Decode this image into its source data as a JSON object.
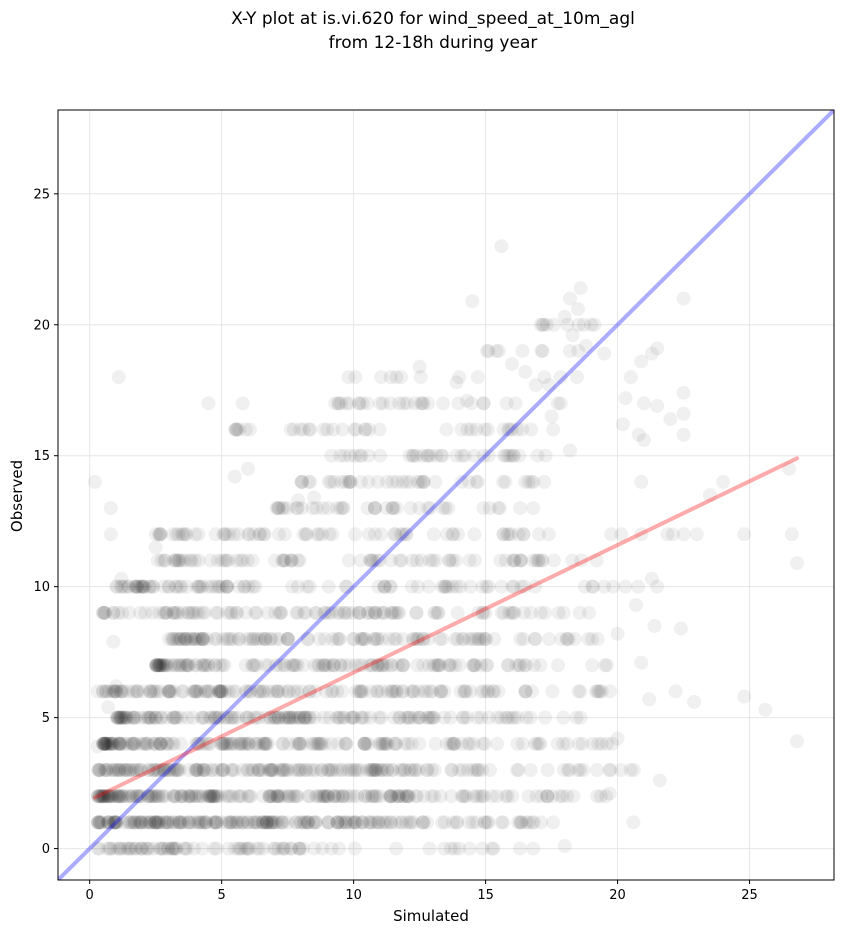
{
  "chart_data": {
    "type": "scatter",
    "title_lines": [
      "X-Y plot at is.vi.620 for wind_speed_at_10m_agl",
      "from 12-18h during year"
    ],
    "xlabel": "Simulated",
    "ylabel": "Observed",
    "xlim": [
      -1.2,
      28.2
    ],
    "ylim": [
      -1.2,
      28.2
    ],
    "xticks": [
      0,
      5,
      10,
      15,
      20,
      25
    ],
    "yticks": [
      0,
      5,
      10,
      15,
      20,
      25
    ],
    "grid": true,
    "colors": {
      "points": "#000000",
      "one_to_one_line": "#0000ff",
      "regression_line": "#ff0000",
      "grid": "#e6e6e6"
    },
    "point_alpha": 0.06,
    "lines": [
      {
        "role": "one-to-one",
        "x": [
          -1.2,
          28.2
        ],
        "y": [
          -1.2,
          28.2
        ]
      },
      {
        "role": "regression",
        "x": [
          0.2,
          26.8
        ],
        "y": [
          1.95,
          14.9
        ]
      }
    ],
    "series": [
      {
        "role": "observations",
        "clusters": [
          {
            "y": 0,
            "x_range": [
              0.3,
              9.5
            ],
            "count": 70
          },
          {
            "y": 0,
            "x_range": [
              10.0,
              18.5
            ],
            "count": 10
          },
          {
            "y": 1,
            "x_range": [
              0.3,
              11.0
            ],
            "count": 170
          },
          {
            "y": 1,
            "x_range": [
              11.0,
              18.5
            ],
            "count": 40
          },
          {
            "y": 2,
            "x_range": [
              0.3,
              12.0
            ],
            "count": 170
          },
          {
            "y": 2,
            "x_range": [
              12.0,
              20.0
            ],
            "count": 40
          },
          {
            "y": 3,
            "x_range": [
              0.3,
              12.5
            ],
            "count": 150
          },
          {
            "y": 3,
            "x_range": [
              12.5,
              21.0
            ],
            "count": 30
          },
          {
            "y": 4,
            "x_range": [
              0.5,
              13.0
            ],
            "count": 140
          },
          {
            "y": 4,
            "x_range": [
              13.0,
              20.0
            ],
            "count": 30
          },
          {
            "y": 5,
            "x_range": [
              1.0,
              13.5
            ],
            "count": 130
          },
          {
            "y": 5,
            "x_range": [
              13.5,
              19.0
            ],
            "count": 20
          },
          {
            "y": 6,
            "x_range": [
              0.5,
              14.0
            ],
            "count": 120
          },
          {
            "y": 6,
            "x_range": [
              14.0,
              20.0
            ],
            "count": 25
          },
          {
            "y": 7,
            "x_range": [
              2.5,
              14.5
            ],
            "count": 110
          },
          {
            "y": 7,
            "x_range": [
              14.5,
              20.0
            ],
            "count": 20
          },
          {
            "y": 8,
            "x_range": [
              3.0,
              15.0
            ],
            "count": 100
          },
          {
            "y": 8,
            "x_range": [
              15.0,
              20.0
            ],
            "count": 15
          },
          {
            "y": 9,
            "x_range": [
              0.5,
              15.0
            ],
            "count": 90
          },
          {
            "y": 9,
            "x_range": [
              15.0,
              19.0
            ],
            "count": 15
          },
          {
            "y": 10,
            "x_range": [
              1.0,
              16.0
            ],
            "count": 80
          },
          {
            "y": 10,
            "x_range": [
              16.0,
              21.0
            ],
            "count": 12
          },
          {
            "y": 11,
            "x_range": [
              2.5,
              17.0
            ],
            "count": 70
          },
          {
            "y": 11,
            "x_range": [
              17.0,
              19.5
            ],
            "count": 8
          },
          {
            "y": 12,
            "x_range": [
              2.5,
              17.0
            ],
            "count": 60
          },
          {
            "y": 12,
            "x_range": [
              17.0,
              23.0
            ],
            "count": 8
          },
          {
            "y": 13,
            "x_range": [
              7.0,
              17.0
            ],
            "count": 40
          },
          {
            "y": 14,
            "x_range": [
              8.0,
              17.5
            ],
            "count": 40
          },
          {
            "y": 15,
            "x_range": [
              9.0,
              18.0
            ],
            "count": 35
          },
          {
            "y": 16,
            "x_range": [
              5.5,
              18.0
            ],
            "count": 35
          },
          {
            "y": 17,
            "x_range": [
              9.0,
              18.0
            ],
            "count": 30
          },
          {
            "y": 18,
            "x_range": [
              10.0,
              18.5
            ],
            "count": 10
          },
          {
            "y": 19,
            "x_range": [
              15.0,
              19.0
            ],
            "count": 8
          },
          {
            "y": 20,
            "x_range": [
              17.0,
              19.5
            ],
            "count": 8
          }
        ],
        "scatter_points": [
          [
            0.2,
            14
          ],
          [
            0.8,
            13
          ],
          [
            0.8,
            12
          ],
          [
            1.1,
            18
          ],
          [
            2.5,
            11.5
          ],
          [
            4.5,
            17
          ],
          [
            5.5,
            16
          ],
          [
            5.8,
            17
          ],
          [
            5.5,
            14.2
          ],
          [
            6.0,
            14.5
          ],
          [
            14.5,
            20.9
          ],
          [
            15.6,
            23
          ],
          [
            15.5,
            19
          ],
          [
            16.0,
            18.5
          ],
          [
            16.5,
            18.2
          ],
          [
            17.2,
            20
          ],
          [
            18.0,
            20.3
          ],
          [
            18.2,
            21
          ],
          [
            18.6,
            21.4
          ],
          [
            18.5,
            20.6
          ],
          [
            19.0,
            20
          ],
          [
            18.3,
            19.6
          ],
          [
            18.8,
            19.2
          ],
          [
            19.5,
            18.9
          ],
          [
            20.5,
            18
          ],
          [
            20.9,
            18.6
          ],
          [
            21.3,
            18.9
          ],
          [
            21.5,
            19.1
          ],
          [
            21.0,
            17
          ],
          [
            21.5,
            16.9
          ],
          [
            22.0,
            16.4
          ],
          [
            22.5,
            16.6
          ],
          [
            22.5,
            15.8
          ],
          [
            22.5,
            17.4
          ],
          [
            22.5,
            21
          ],
          [
            20.8,
            15.8
          ],
          [
            21.0,
            15.6
          ],
          [
            20.3,
            17.2
          ],
          [
            20.2,
            16.2
          ],
          [
            20.9,
            14
          ],
          [
            23.5,
            13.5
          ],
          [
            24.0,
            14
          ],
          [
            24.8,
            12
          ],
          [
            26.5,
            14.5
          ],
          [
            26.6,
            12
          ],
          [
            26.8,
            10.9
          ],
          [
            23.0,
            12
          ],
          [
            21.3,
            10.3
          ],
          [
            21.5,
            10
          ],
          [
            20.7,
            9.3
          ],
          [
            22.4,
            8.4
          ],
          [
            21.4,
            8.5
          ],
          [
            20.0,
            8.2
          ],
          [
            20.9,
            7.1
          ],
          [
            22.9,
            5.6
          ],
          [
            24.8,
            5.8
          ],
          [
            25.6,
            5.3
          ],
          [
            26.8,
            4.1
          ],
          [
            21.2,
            5.7
          ],
          [
            22.2,
            6.0
          ],
          [
            21.6,
            2.6
          ],
          [
            20.5,
            3.0
          ],
          [
            20.6,
            1.0
          ],
          [
            20.0,
            4.2
          ],
          [
            19.7,
            2.1
          ],
          [
            18.0,
            0.1
          ],
          [
            16.3,
            0.0
          ],
          [
            15.3,
            0.0
          ],
          [
            14.0,
            0.0
          ],
          [
            1.2,
            10.3
          ],
          [
            1.8,
            10
          ],
          [
            0.5,
            9
          ],
          [
            0.9,
            7.9
          ],
          [
            1.0,
            6.2
          ],
          [
            0.3,
            6
          ],
          [
            0.3,
            3.9
          ],
          [
            0.7,
            5.4
          ],
          [
            4.0,
            12
          ],
          [
            3.5,
            12
          ],
          [
            7.9,
            13.3
          ],
          [
            8.5,
            13.4
          ],
          [
            8.1,
            16
          ],
          [
            9.0,
            16
          ],
          [
            9.8,
            18
          ],
          [
            11.8,
            18
          ],
          [
            12.5,
            18.4
          ],
          [
            13.9,
            17.8
          ],
          [
            14.3,
            17.1
          ],
          [
            16.9,
            17.7
          ],
          [
            17.4,
            17.7
          ],
          [
            17.5,
            16.5
          ],
          [
            18.2,
            15.2
          ]
        ]
      }
    ]
  }
}
